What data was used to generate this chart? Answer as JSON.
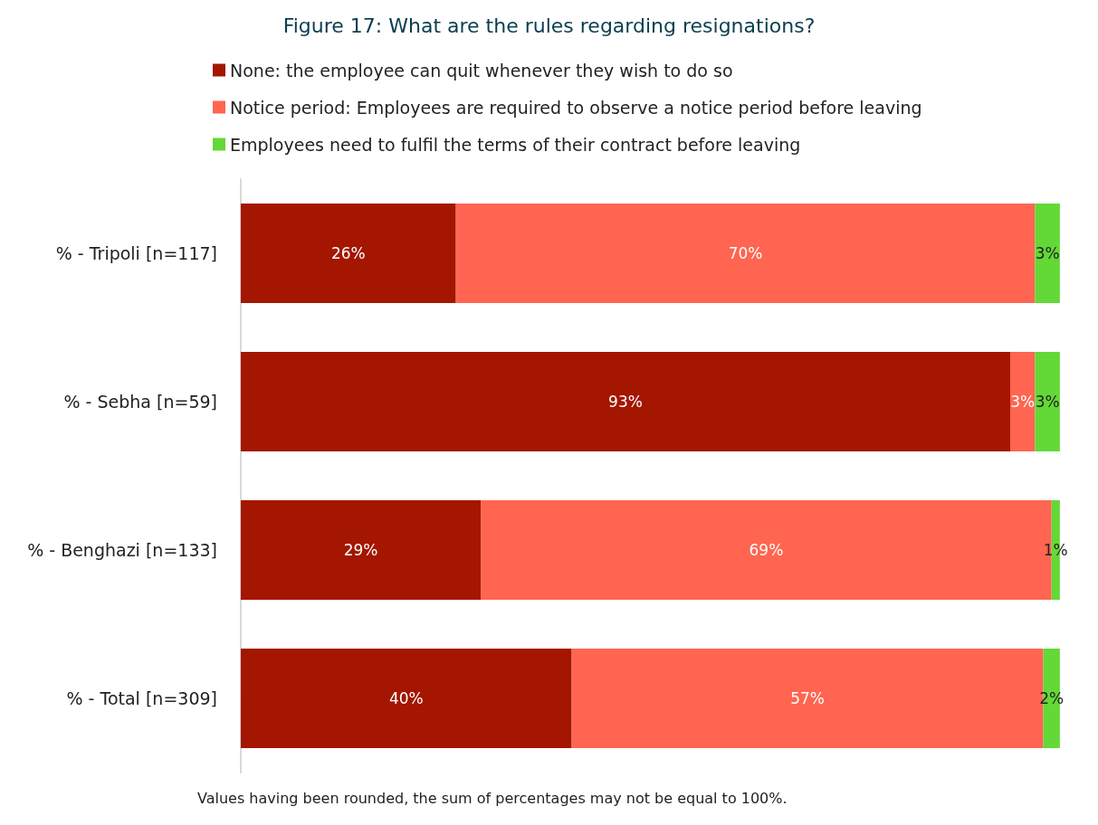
{
  "chart_data": {
    "type": "bar",
    "title": "Figure 17: What are the rules regarding resignations?",
    "orientation": "horizontal",
    "stacked": true,
    "categories": [
      "% - Tripoli [n=117]",
      "% - Sebha [n=59]",
      "% - Benghazi [n=133]",
      "% - Total [n=309]"
    ],
    "series": [
      {
        "name": "None: the employee can quit whenever they wish to do so",
        "color": "#a41600",
        "values": [
          26,
          93,
          29,
          40
        ],
        "value_labels": [
          "26%",
          "93%",
          "29%",
          "40%"
        ]
      },
      {
        "name": "Notice period: Employees are required to observe a notice period before leaving",
        "color": "#ff6550",
        "values": [
          70,
          3,
          69,
          57
        ],
        "value_labels": [
          "70%",
          "3%",
          "69%",
          "57%"
        ]
      },
      {
        "name": "Employees need to fulfil the terms of their contract before leaving",
        "color": "#62d936",
        "values": [
          3,
          3,
          1,
          2
        ],
        "value_labels": [
          "3%",
          "3%",
          "1%",
          "2%"
        ]
      }
    ],
    "tick_labels": "y",
    "grid": false,
    "legend": "top",
    "annotations": [
      "Values having been rounded, the sum of percentages may not be equal to 100%."
    ]
  }
}
